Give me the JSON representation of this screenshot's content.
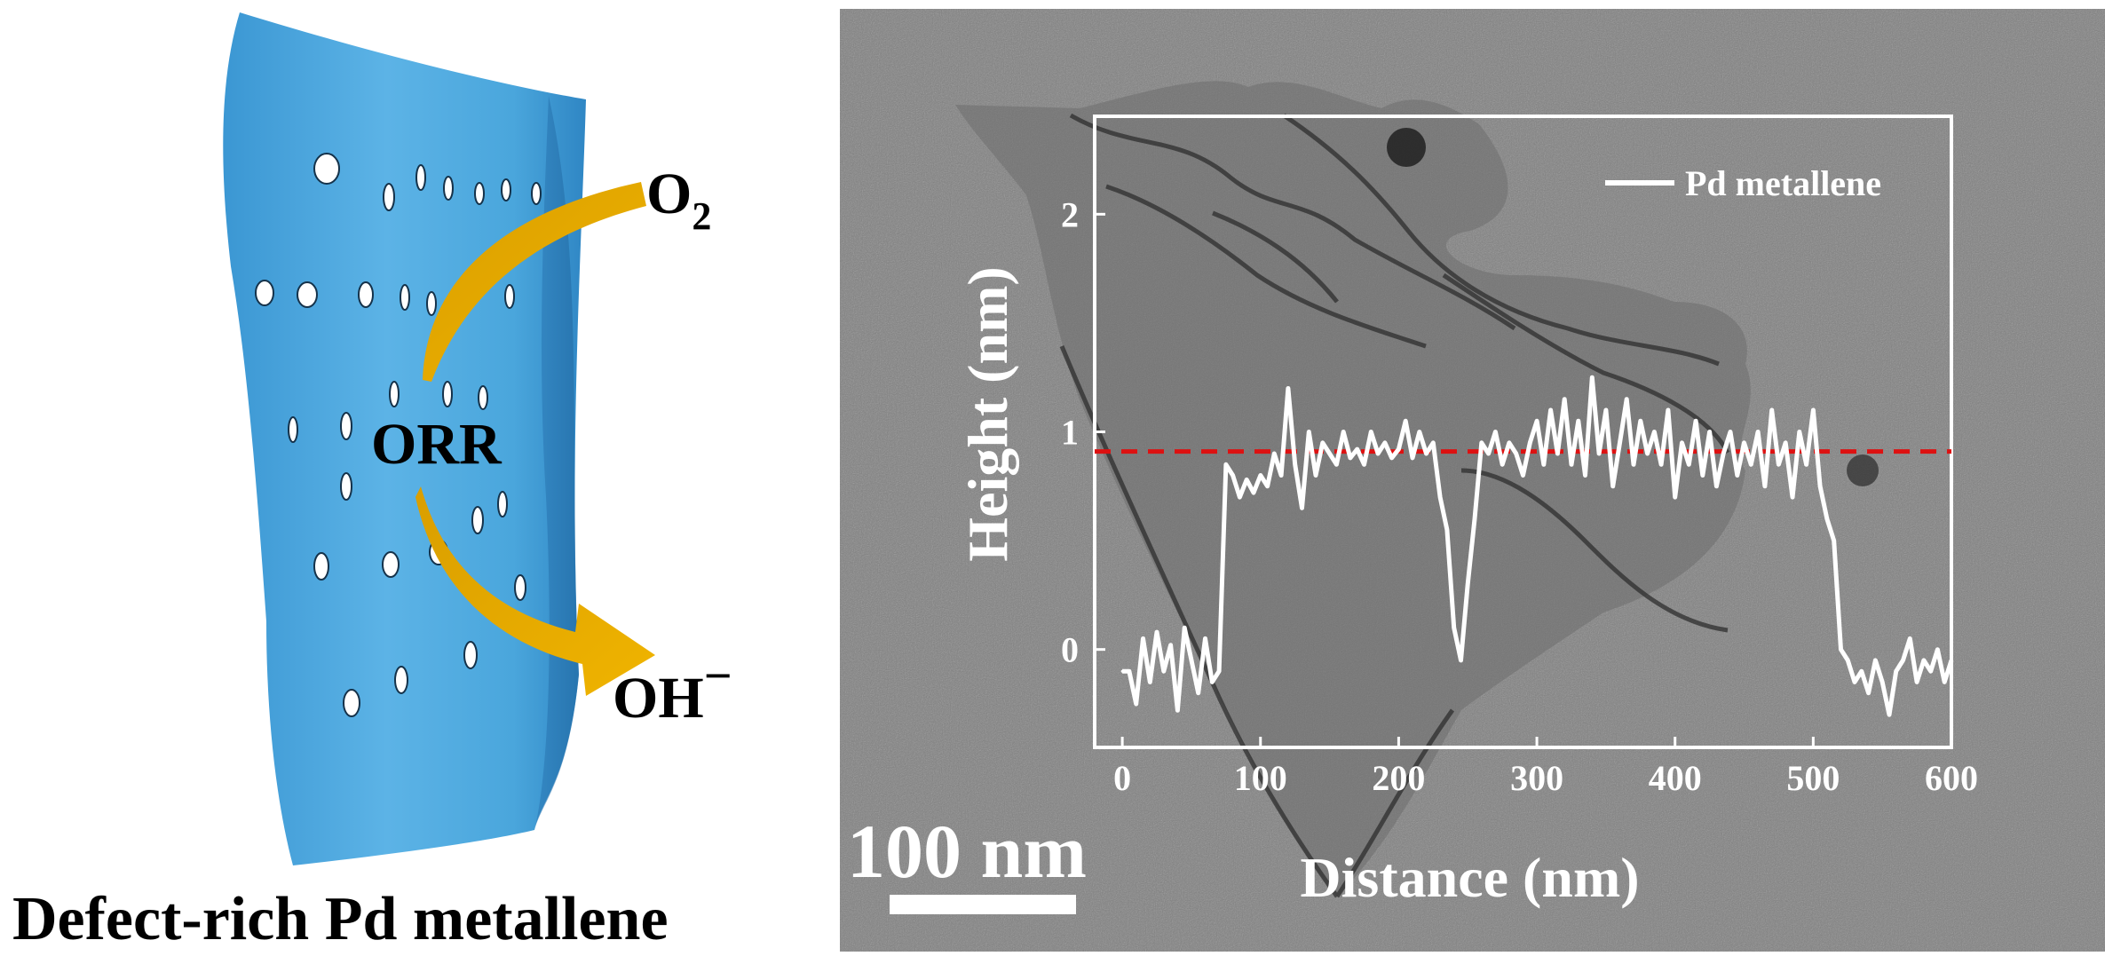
{
  "scheme": {
    "label_o2_main": "O",
    "label_o2_sub": "2",
    "label_orr": "ORR",
    "label_oh": "OH",
    "label_oh_charge": "−",
    "caption": "Defect-rich Pd metallene",
    "sheet_color": "#4aa6dc",
    "arrow_color": "#e8a800"
  },
  "tem": {
    "scale_bar_label": "100 nm",
    "background_color": "#7f7f7f",
    "line_color": "#ffffff"
  },
  "chart_data": {
    "type": "line",
    "xlabel": "Distance (nm)",
    "ylabel": "Height (nm)",
    "xlim": [
      -20,
      600
    ],
    "ylim": [
      -0.45,
      2.45
    ],
    "xticks": [
      0,
      100,
      200,
      300,
      400,
      500,
      600
    ],
    "yticks": [
      0,
      1,
      2
    ],
    "legend_position": "top-right",
    "reference_line": {
      "y": 0.91,
      "color": "#dd1111",
      "style": "dashed"
    },
    "series": [
      {
        "name": "Pd metallene",
        "x": [
          0,
          5,
          10,
          15,
          20,
          25,
          30,
          35,
          40,
          45,
          50,
          55,
          60,
          65,
          70,
          75,
          80,
          85,
          90,
          95,
          100,
          105,
          110,
          115,
          120,
          125,
          130,
          135,
          140,
          145,
          150,
          155,
          160,
          165,
          170,
          175,
          180,
          185,
          190,
          195,
          200,
          205,
          210,
          215,
          220,
          225,
          230,
          235,
          240,
          245,
          250,
          255,
          260,
          265,
          270,
          275,
          280,
          285,
          290,
          295,
          300,
          305,
          310,
          315,
          320,
          325,
          330,
          335,
          340,
          345,
          350,
          355,
          360,
          365,
          370,
          375,
          380,
          385,
          390,
          395,
          400,
          405,
          410,
          415,
          420,
          425,
          430,
          435,
          440,
          445,
          450,
          455,
          460,
          465,
          470,
          475,
          480,
          485,
          490,
          495,
          500,
          505,
          510,
          515,
          520,
          525,
          530,
          535,
          540,
          545,
          550,
          555,
          560,
          565,
          570,
          575,
          580,
          585,
          590,
          595,
          600
        ],
        "y": [
          -0.1,
          -0.1,
          -0.25,
          0.05,
          -0.15,
          0.08,
          -0.1,
          0.02,
          -0.28,
          0.1,
          -0.05,
          -0.2,
          0.05,
          -0.15,
          -0.1,
          0.85,
          0.8,
          0.7,
          0.78,
          0.72,
          0.8,
          0.75,
          0.9,
          0.8,
          1.2,
          0.85,
          0.65,
          1.0,
          0.8,
          0.95,
          0.9,
          0.85,
          1.0,
          0.88,
          0.92,
          0.85,
          1.0,
          0.9,
          0.95,
          0.88,
          0.92,
          1.05,
          0.88,
          1.0,
          0.9,
          0.95,
          0.7,
          0.55,
          0.1,
          -0.05,
          0.3,
          0.6,
          0.95,
          0.9,
          1.0,
          0.85,
          0.95,
          0.9,
          0.8,
          0.95,
          1.05,
          0.85,
          1.1,
          0.9,
          1.15,
          0.85,
          1.05,
          0.8,
          1.25,
          0.9,
          1.1,
          0.75,
          0.95,
          1.15,
          0.85,
          1.05,
          0.9,
          1.0,
          0.85,
          1.1,
          0.7,
          0.95,
          0.85,
          1.05,
          0.8,
          1.0,
          0.75,
          0.9,
          1.0,
          0.8,
          0.95,
          0.85,
          1.0,
          0.75,
          1.1,
          0.85,
          0.95,
          0.7,
          1.0,
          0.85,
          1.1,
          0.75,
          0.6,
          0.5,
          0.0,
          -0.05,
          -0.15,
          -0.1,
          -0.2,
          -0.05,
          -0.15,
          -0.3,
          -0.1,
          -0.05,
          0.05,
          -0.15,
          -0.05,
          -0.1,
          0.0,
          -0.15,
          -0.05
        ]
      }
    ]
  }
}
